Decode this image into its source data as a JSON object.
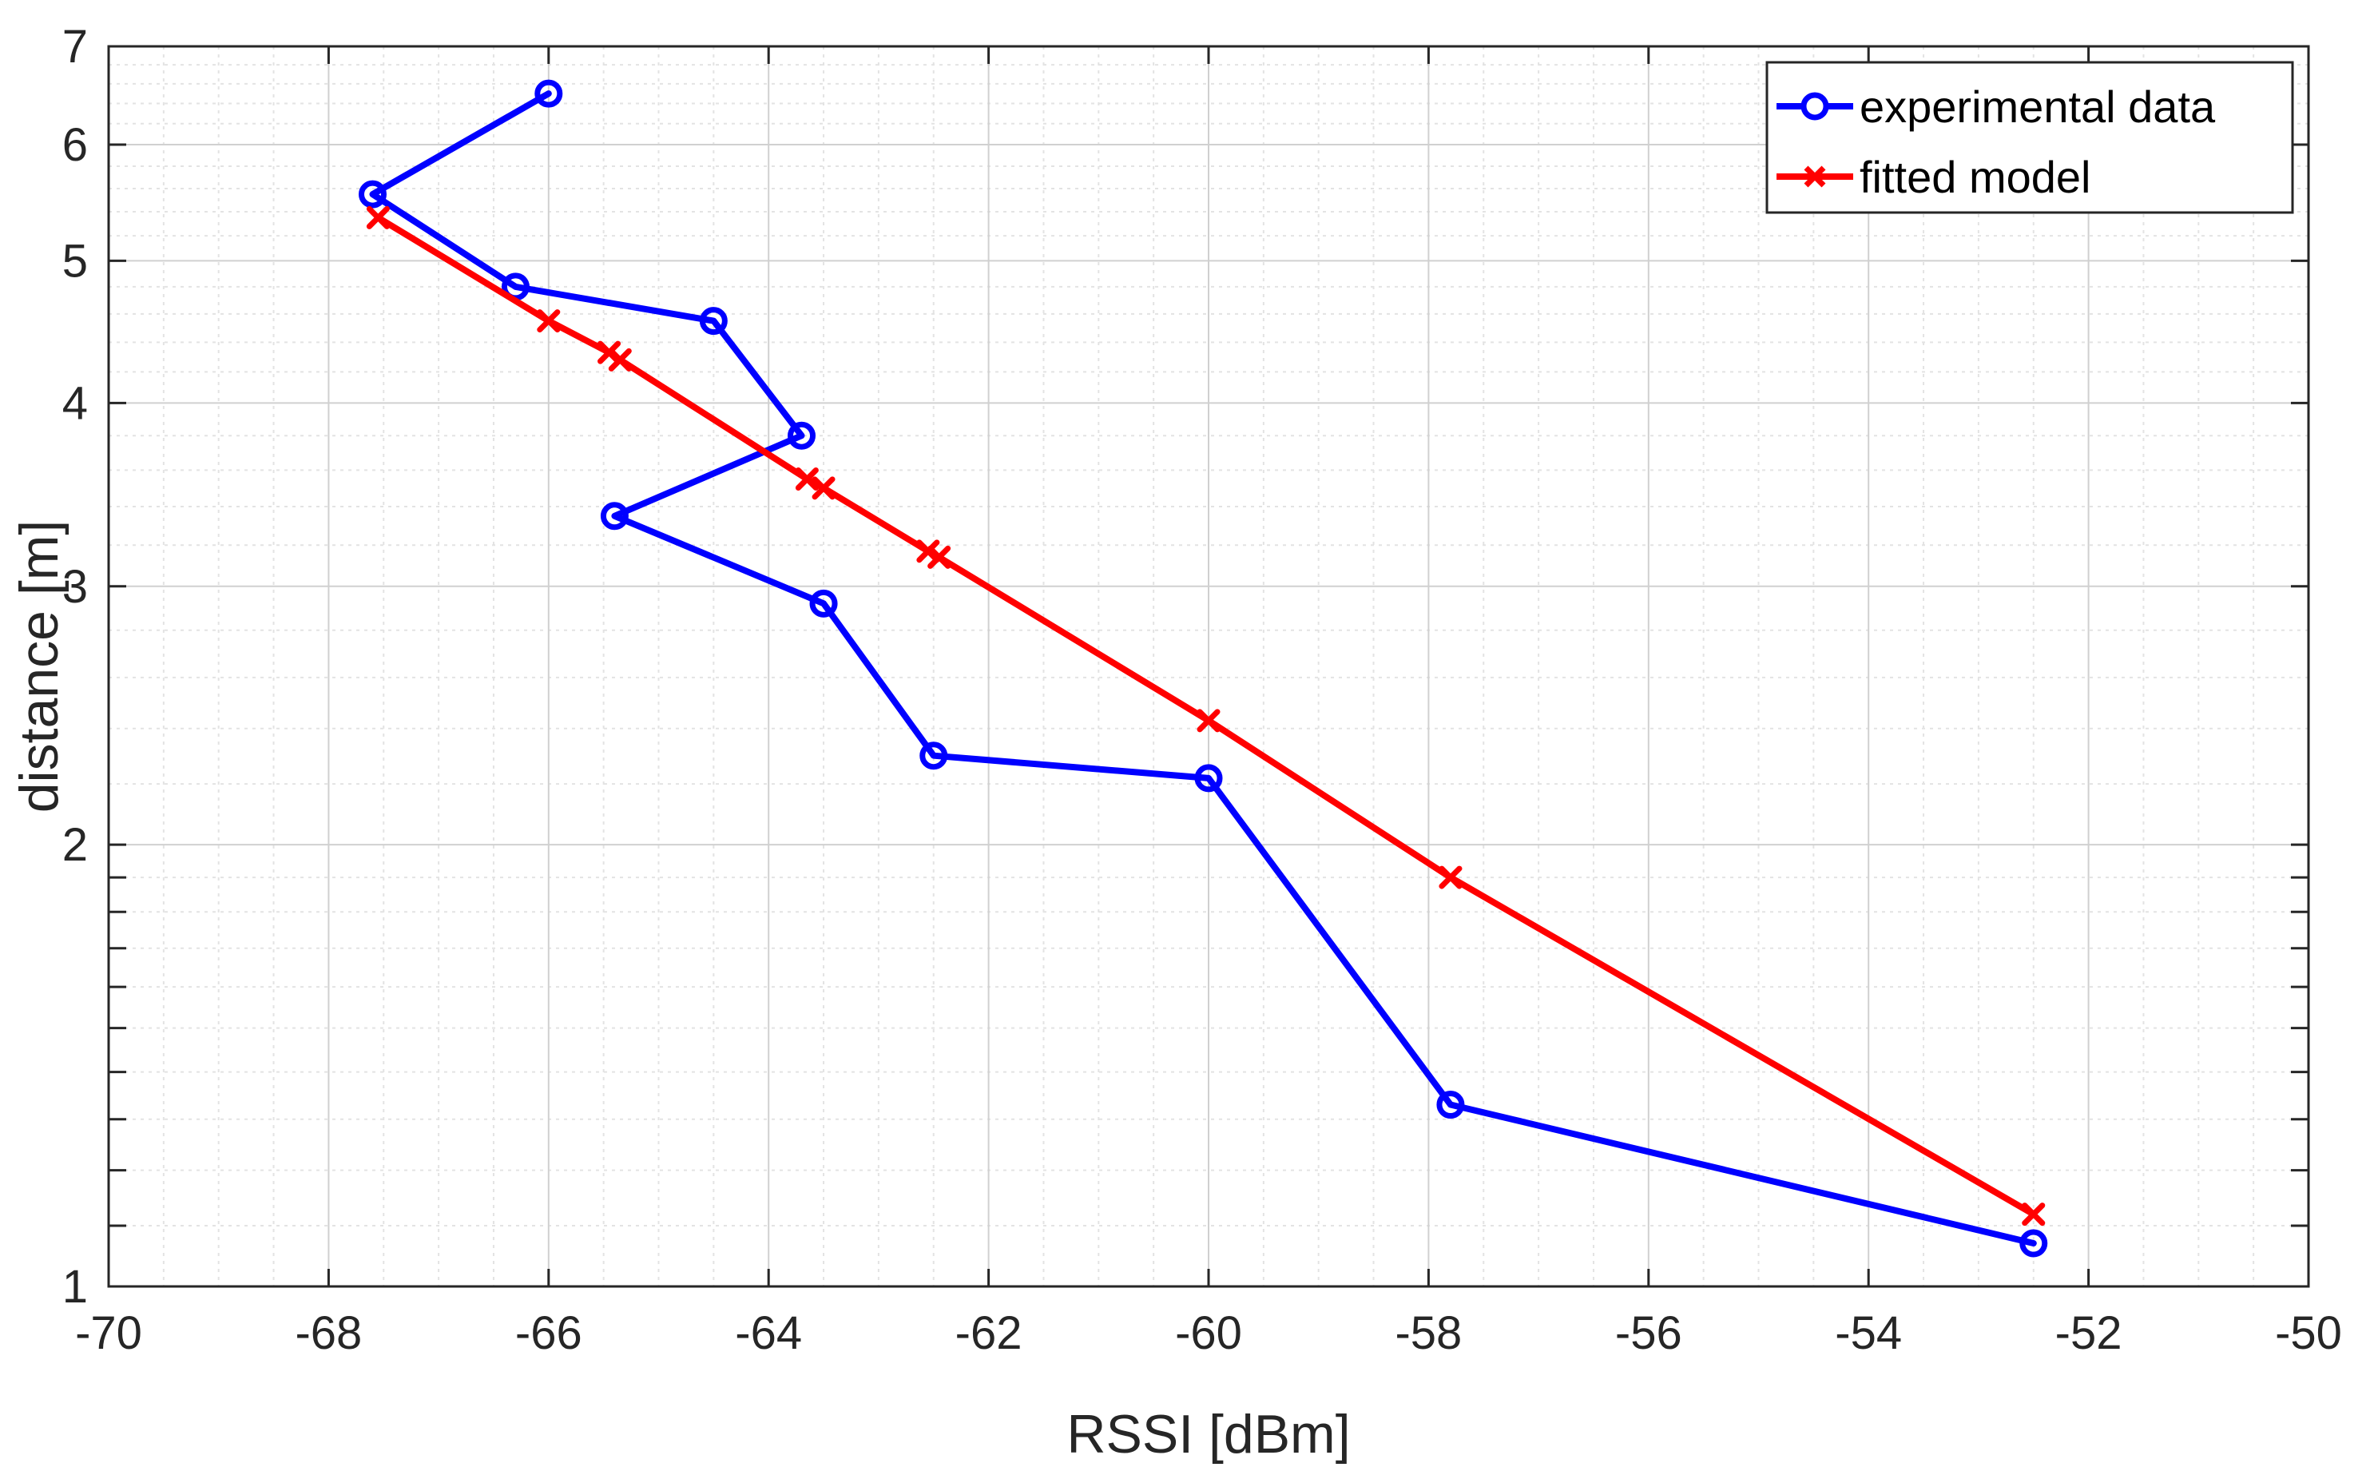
{
  "chart_data": {
    "type": "line",
    "xlabel": "RSSI [dBm]",
    "ylabel": "distance [m]",
    "xlim": [
      -70,
      -50
    ],
    "ylim": [
      1,
      7
    ],
    "yscale": "log",
    "grid": "on",
    "minor_grid": "on",
    "legend_position": "top-right",
    "x_ticks": [
      -70,
      -68,
      -66,
      -64,
      -62,
      -60,
      -58,
      -56,
      -54,
      -52,
      -50
    ],
    "x_tick_labels": [
      "-70",
      "-68",
      "-66",
      "-64",
      "-62",
      "-60",
      "-58",
      "-56",
      "-54",
      "-52",
      "-50"
    ],
    "y_ticks": [
      1,
      2,
      3,
      4,
      5,
      6,
      7
    ],
    "y_tick_labels": [
      "1",
      "2",
      "3",
      "4",
      "5",
      "6",
      "7"
    ],
    "series": [
      {
        "name": "experimental data",
        "color": "#0000ff",
        "marker": "circle",
        "x": [
          -66.0,
          -67.6,
          -66.3,
          -64.5,
          -63.7,
          -65.4,
          -63.5,
          -62.5,
          -60.0,
          -57.8,
          -52.5
        ],
        "y": [
          6.5,
          5.55,
          4.8,
          4.55,
          3.8,
          3.35,
          2.92,
          2.3,
          2.22,
          1.33,
          1.07
        ]
      },
      {
        "name": "fitted model",
        "color": "#ff0000",
        "marker": "x",
        "x": [
          -67.55,
          -66.0,
          -65.45,
          -65.35,
          -63.65,
          -63.5,
          -62.55,
          -62.45,
          -60.0,
          -57.8,
          -52.5
        ],
        "y": [
          5.35,
          4.55,
          4.33,
          4.28,
          3.55,
          3.5,
          3.17,
          3.14,
          2.43,
          1.9,
          1.12
        ]
      }
    ]
  }
}
